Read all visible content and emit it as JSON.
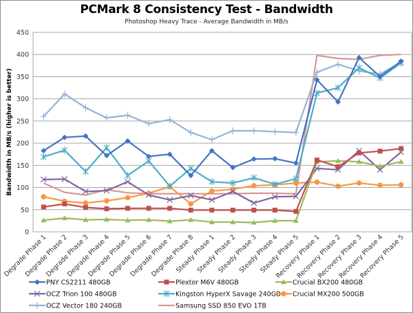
{
  "chart_data": {
    "type": "line",
    "title": "PCMark 8 Consistency Test - Bandwidth",
    "subtitle": "Photoshop Heavy Trace - Average Bandwidth in MB/s",
    "xlabel": "",
    "ylabel": "Bandwidth in MB/s (higher is better)",
    "ylim": [
      0,
      450
    ],
    "yticks": [
      0,
      50,
      100,
      150,
      200,
      250,
      300,
      350,
      400,
      450
    ],
    "grid": true,
    "legend_position": "bottom",
    "categories": [
      "Degrade Phase 1",
      "Degrade Phase 2",
      "Degrade Phase 3",
      "Degrade Phase 4",
      "Degrade Phase 5",
      "Degrade Phase 6",
      "Degrade Phase 7",
      "Degrade Phase 8",
      "Steady Phase 1",
      "Steady Phase 2",
      "Steady Phase 3",
      "Steady Phase 4",
      "Steady Phase 5",
      "Recovery Phase 1",
      "Recovery Phase 2",
      "Recovery Phase 3",
      "Recovery Phase 4",
      "Recovery Phase 5"
    ],
    "series": [
      {
        "name": "PNY CS2211 480GB",
        "color": "#4472c4",
        "marker": "diamond",
        "values": [
          183,
          213,
          216,
          172,
          205,
          170,
          175,
          127,
          183,
          145,
          164,
          165,
          155,
          343,
          293,
          393,
          350,
          385
        ]
      },
      {
        "name": "Plextor M6V 480GB",
        "color": "#c0504d",
        "marker": "square",
        "values": [
          56,
          63,
          55,
          52,
          53,
          53,
          53,
          49,
          49,
          49,
          49,
          49,
          46,
          162,
          147,
          178,
          182,
          188
        ]
      },
      {
        "name": "Crucial BX200 480GB",
        "color": "#9bbb59",
        "marker": "triangle",
        "values": [
          26,
          31,
          27,
          28,
          26,
          27,
          24,
          27,
          22,
          22,
          21,
          25,
          25,
          158,
          160,
          158,
          148,
          158
        ]
      },
      {
        "name": "OCZ Trion 100 480GB",
        "color": "#8064a2",
        "marker": "x",
        "values": [
          118,
          119,
          91,
          93,
          113,
          83,
          72,
          82,
          72,
          91,
          65,
          79,
          80,
          143,
          140,
          183,
          140,
          180
        ]
      },
      {
        "name": "Kingston HyperX Savage 240GB",
        "color": "#4bacc6",
        "marker": "star",
        "values": [
          169,
          184,
          136,
          190,
          127,
          160,
          103,
          143,
          113,
          110,
          122,
          107,
          120,
          313,
          325,
          370,
          347,
          381
        ]
      },
      {
        "name": "Crucial MX200 500GB",
        "color": "#f79646",
        "marker": "circle",
        "values": [
          79,
          69,
          65,
          70,
          77,
          87,
          102,
          63,
          92,
          96,
          104,
          106,
          110,
          112,
          103,
          110,
          105,
          106
        ]
      },
      {
        "name": "OCZ Vector 180 240GB",
        "color": "#95b3d7",
        "marker": "plus",
        "values": [
          260,
          311,
          280,
          257,
          263,
          244,
          253,
          224,
          208,
          228,
          228,
          226,
          224,
          360,
          378,
          363,
          356,
          382
        ]
      },
      {
        "name": "Samsung SSD 850 EVO 1TB",
        "color": "#d99694",
        "marker": "none",
        "values": [
          110,
          89,
          83,
          95,
          88,
          86,
          86,
          86,
          86,
          86,
          87,
          87,
          86,
          398,
          391,
          389,
          398,
          400
        ]
      }
    ]
  }
}
